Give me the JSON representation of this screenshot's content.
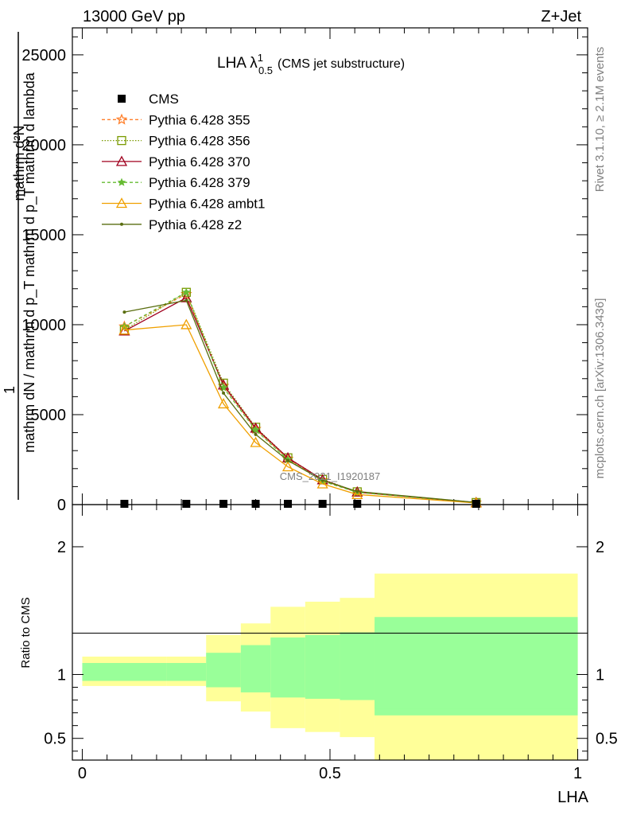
{
  "header": {
    "left": "13000 GeV pp",
    "right": "Z+Jet"
  },
  "side_labels": {
    "rivet": "Rivet 3.1.10, ≥ 2.1M events",
    "mcplots": "mcplots.cern.ch [arXiv:1306.3436]"
  },
  "watermark": "CMS_2021_I1920187",
  "title": {
    "main": "LHA λ",
    "sup": "1",
    "sub": "0.5",
    "suffix": "(CMS jet substructure)"
  },
  "ylabel_main": {
    "line1": "1",
    "line2": "mathrm dN / mathrm d p_T mathrm d p_T mathrm d lambda",
    "line3": "mathrm d²N"
  },
  "ylabel_ratio": "Ratio to CMS",
  "xlabel": "LHA",
  "chart_data": {
    "type": "line",
    "xlim": [
      -0.02,
      1.02
    ],
    "ylim": [
      0,
      26500
    ],
    "yticks": [
      0,
      5000,
      10000,
      15000,
      20000,
      25000
    ],
    "xticks": [
      0,
      0.5,
      1
    ],
    "xtick_labels": [
      "0",
      "0.5",
      "1"
    ],
    "ratio_ylim": [
      0.33,
      2.33
    ],
    "ratio_yticks": [
      0.5,
      1,
      2
    ],
    "bins": [
      0,
      0.17,
      0.25,
      0.32,
      0.38,
      0.45,
      0.52,
      0.59,
      1.0
    ],
    "x": [
      0.085,
      0.21,
      0.285,
      0.35,
      0.415,
      0.485,
      0.555,
      0.795
    ],
    "cms": {
      "name": "CMS",
      "values": [
        5,
        10,
        10,
        10,
        10,
        10,
        10,
        5
      ]
    },
    "series": [
      {
        "name": "Pythia 6.428 355",
        "color": "#ff7f2a",
        "dash": "4,3",
        "marker": "star",
        "values": [
          9900,
          11700,
          6600,
          4200,
          2550,
          1350,
          690,
          110
        ]
      },
      {
        "name": "Pythia 6.428 356",
        "color": "#7a9a00",
        "dash": "1.5,2",
        "marker": "square",
        "values": [
          9700,
          11800,
          6750,
          4300,
          2600,
          1400,
          710,
          115
        ]
      },
      {
        "name": "Pythia 6.428 370",
        "color": "#a0001e",
        "dash": "",
        "marker": "triangle",
        "values": [
          9650,
          11500,
          6650,
          4250,
          2600,
          1380,
          700,
          110
        ]
      },
      {
        "name": "Pythia 6.428 379",
        "color": "#66bb33",
        "dash": "4,3",
        "marker": "star-small",
        "values": [
          9900,
          11800,
          6500,
          4150,
          2500,
          1300,
          680,
          100
        ]
      },
      {
        "name": "Pythia 6.428 ambt1",
        "color": "#f0a000",
        "dash": "",
        "marker": "triangle",
        "values": [
          9700,
          10000,
          5600,
          3450,
          2100,
          1150,
          560,
          90
        ]
      },
      {
        "name": "Pythia 6.428 z2",
        "color": "#5a6e10",
        "dash": "",
        "marker": "dot",
        "values": [
          10700,
          11350,
          6200,
          3900,
          2450,
          1350,
          730,
          120
        ]
      }
    ],
    "ratio_bands": {
      "yellow": [
        [
          0.91,
          1.14
        ],
        [
          0.91,
          1.14
        ],
        [
          0.79,
          1.31
        ],
        [
          0.71,
          1.4
        ],
        [
          0.58,
          1.53
        ],
        [
          0.55,
          1.57
        ],
        [
          0.51,
          1.6
        ],
        [
          0.33,
          1.79
        ],
        [
          0.33,
          1.71
        ]
      ],
      "green": [
        [
          0.95,
          1.09
        ],
        [
          0.95,
          1.09
        ],
        [
          0.9,
          1.17
        ],
        [
          0.86,
          1.23
        ],
        [
          0.82,
          1.29
        ],
        [
          0.81,
          1.31
        ],
        [
          0.8,
          1.33
        ],
        [
          0.68,
          1.45
        ],
        [
          0.73,
          1.4
        ]
      ]
    }
  }
}
